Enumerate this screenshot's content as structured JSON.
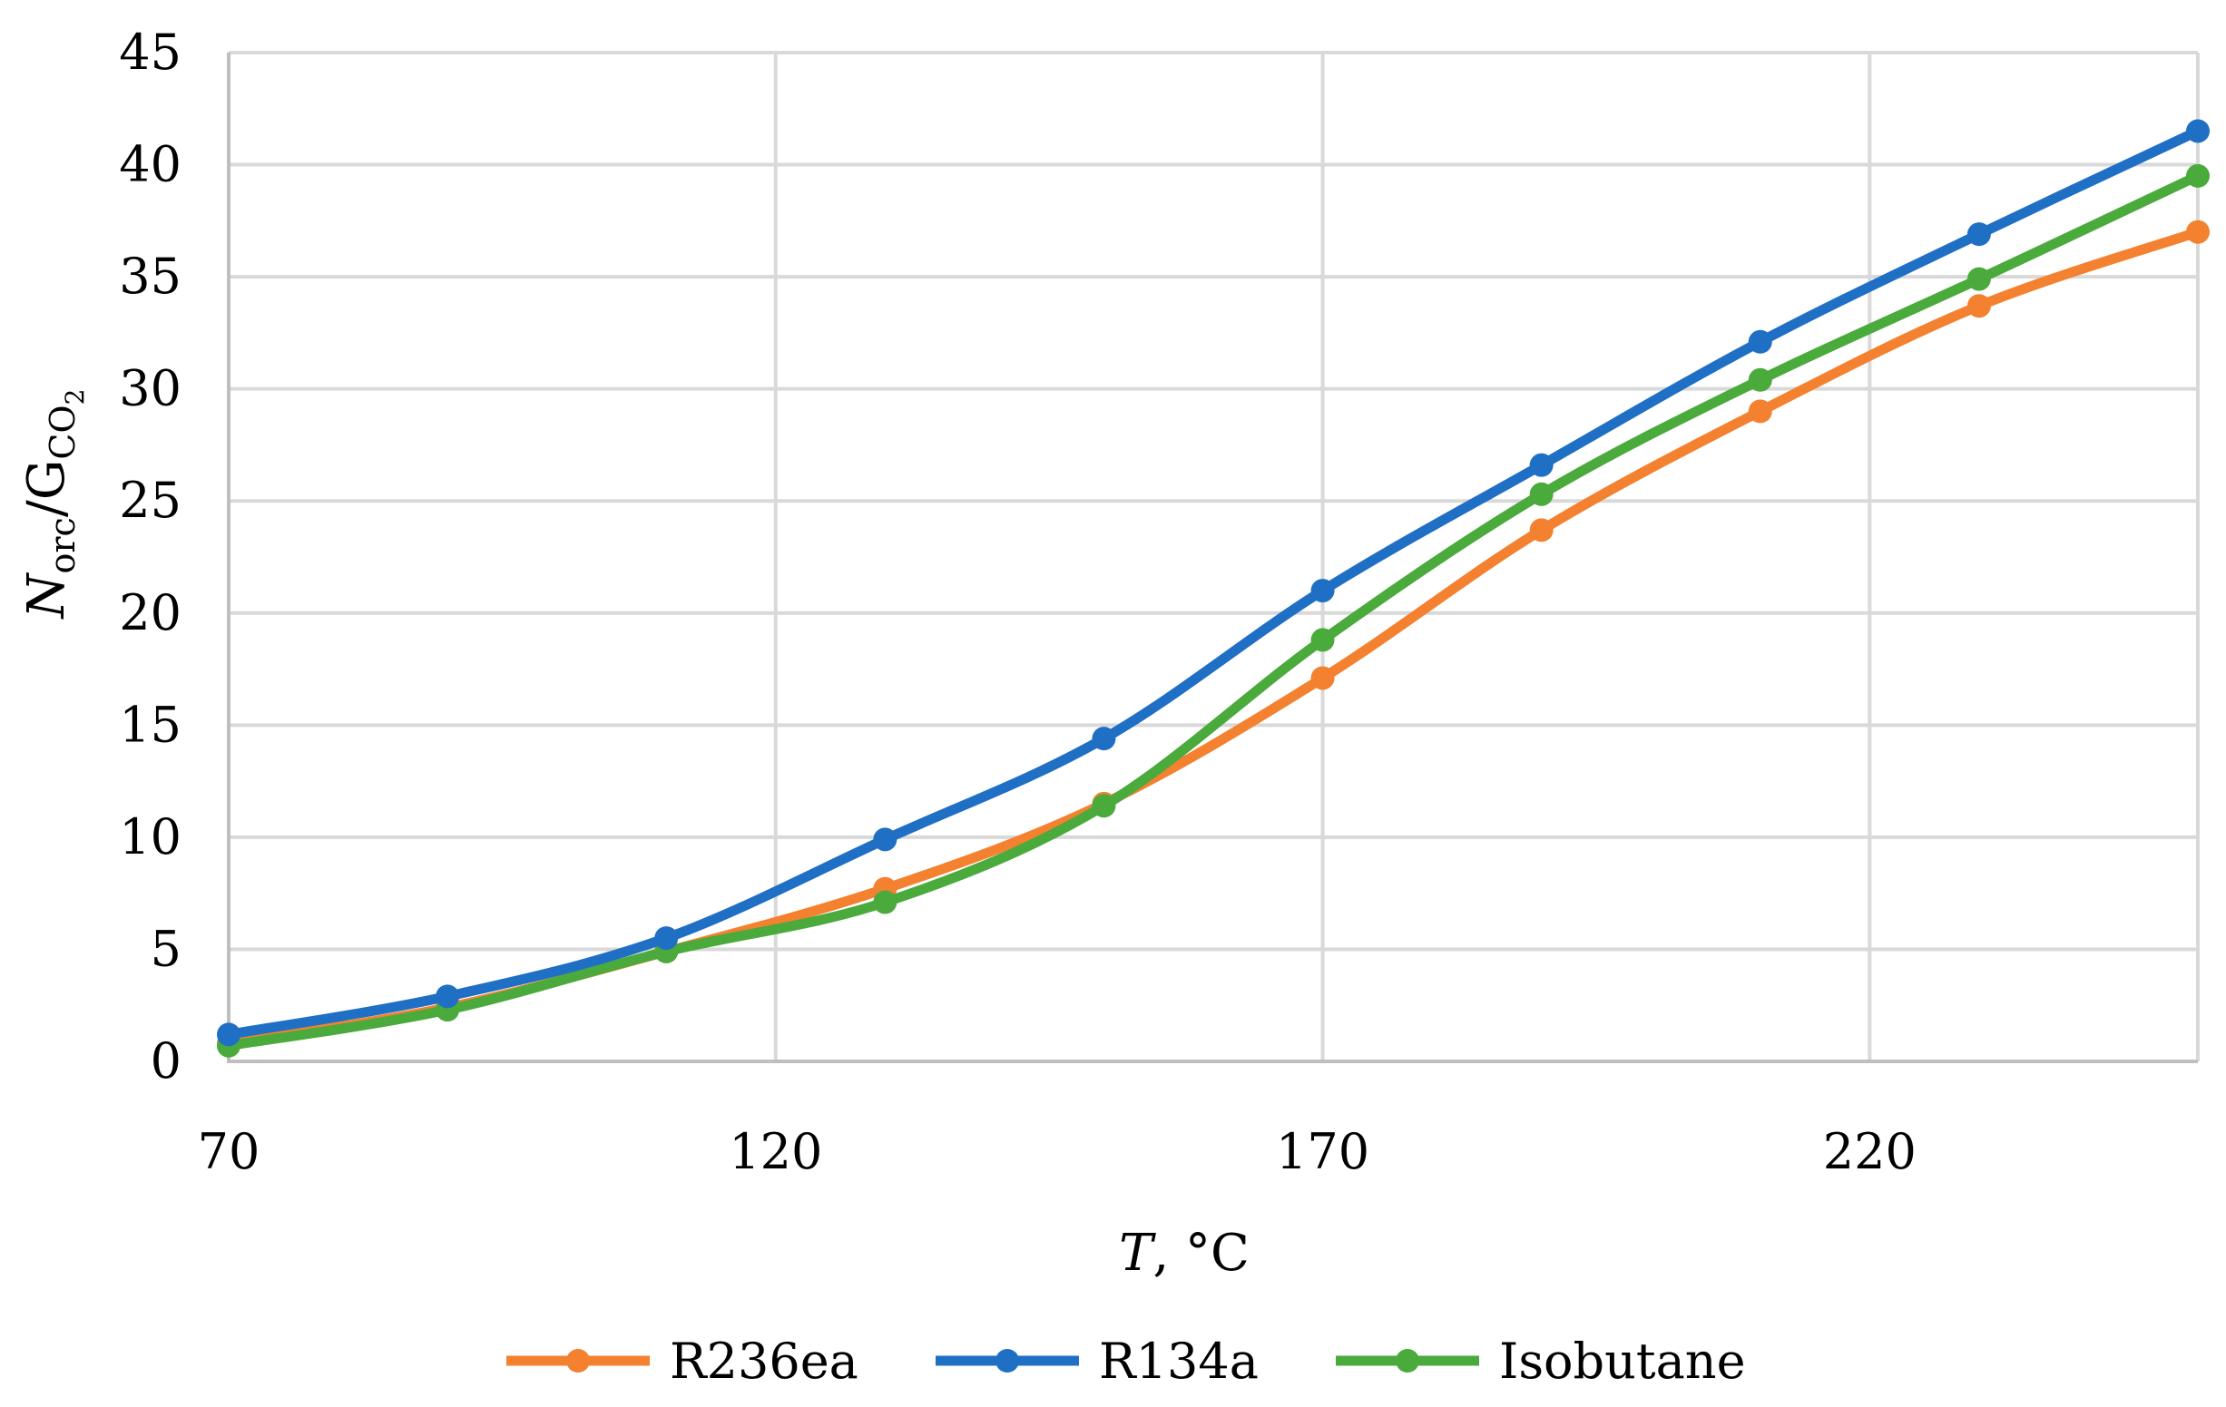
{
  "chart_data": {
    "type": "line",
    "title": "",
    "xlabel_var": "T",
    "xlabel_rest": ", °C",
    "ylabel_parts": {
      "main1": "N",
      "sub1": "orc",
      "slash": "/",
      "main2": "G",
      "sub2": "CO",
      "sub2b": "2"
    },
    "xlim": [
      70,
      250
    ],
    "ylim": [
      0,
      45
    ],
    "xticks": [
      70,
      120,
      170,
      220
    ],
    "yticks": [
      0,
      5,
      10,
      15,
      20,
      25,
      30,
      35,
      40,
      45
    ],
    "vertical_gridlines_at": [
      120,
      170,
      220,
      250
    ],
    "grid": true,
    "legend_position": "bottom",
    "x": [
      70,
      90,
      110,
      130,
      150,
      170,
      190,
      210,
      230,
      250
    ],
    "series": [
      {
        "name": "R236ea",
        "color": "#F4812F",
        "values": [
          0.8,
          2.4,
          4.9,
          7.7,
          11.5,
          17.1,
          23.7,
          29.0,
          33.7,
          37.0
        ]
      },
      {
        "name": "R134a",
        "color": "#1F6FC5",
        "values": [
          1.2,
          2.9,
          5.5,
          9.9,
          14.4,
          21.0,
          26.6,
          32.1,
          36.9,
          41.5
        ]
      },
      {
        "name": "Isobutane",
        "color": "#4AAA3C",
        "values": [
          0.7,
          2.3,
          4.9,
          7.1,
          11.4,
          18.8,
          25.3,
          30.4,
          34.9,
          39.5
        ]
      }
    ]
  }
}
